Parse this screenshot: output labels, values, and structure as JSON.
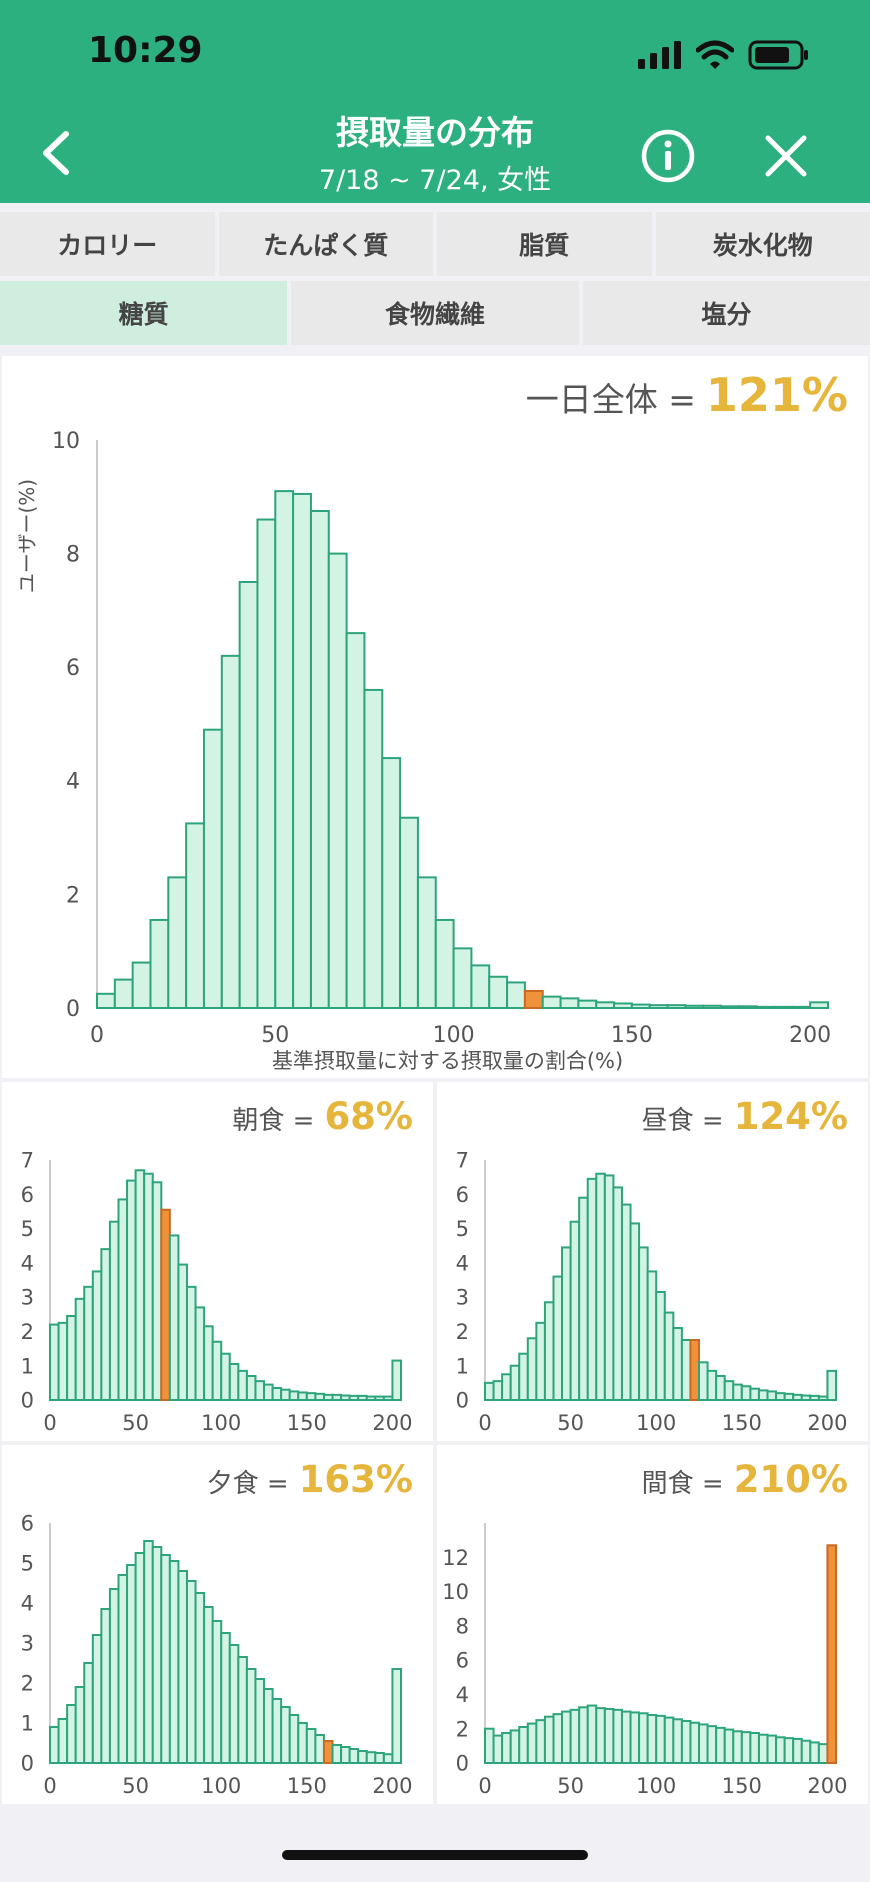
{
  "status_bar": {
    "time": "10:29"
  },
  "header": {
    "title": "摂取量の分布",
    "subtitle": "7/18 ~ 7/24, 女性"
  },
  "tabs": {
    "row1": [
      "カロリー",
      "たんぱく質",
      "脂質",
      "炭水化物"
    ],
    "row2": [
      "糖質",
      "食物繊維",
      "塩分"
    ],
    "active": "糖質"
  },
  "colors": {
    "header": "#2db07f",
    "bar_fill": "#d3f3e5",
    "bar_stroke": "#2ea47c",
    "highlight": "#f0923a",
    "value": "#e6b53c",
    "active_tab": "#cfeee0"
  },
  "chart_data": [
    {
      "type": "bar",
      "stat_label": "一日全体 =",
      "stat_value": "121%",
      "ylabel": "ユーザー(%)",
      "xlabel": "基準摂取量に対する摂取量の割合(%)",
      "xlim": [
        0,
        205
      ],
      "ylim": [
        0,
        10
      ],
      "xticks": [
        0,
        50,
        100,
        150,
        200
      ],
      "yticks": [
        0,
        2,
        4,
        6,
        8,
        10
      ],
      "bin_width": 5,
      "highlight_bin": 24,
      "values": [
        0.25,
        0.5,
        0.8,
        1.55,
        2.3,
        3.25,
        4.9,
        6.2,
        7.5,
        8.6,
        9.1,
        9.05,
        8.75,
        8.0,
        6.6,
        5.6,
        4.4,
        3.35,
        2.3,
        1.55,
        1.05,
        0.75,
        0.55,
        0.45,
        0.3,
        0.2,
        0.17,
        0.13,
        0.1,
        0.08,
        0.06,
        0.05,
        0.05,
        0.04,
        0.04,
        0.03,
        0.03,
        0.02,
        0.02,
        0.02,
        0.1
      ]
    },
    {
      "type": "bar",
      "stat_label": "朝食 =",
      "stat_value": "68%",
      "xlim": [
        0,
        205
      ],
      "ylim": [
        0,
        7
      ],
      "xticks": [
        0,
        50,
        100,
        150,
        200
      ],
      "yticks": [
        0,
        1,
        2,
        3,
        4,
        5,
        6,
        7
      ],
      "bin_width": 5,
      "highlight_bin": 13,
      "values": [
        2.2,
        2.25,
        2.45,
        2.95,
        3.3,
        3.75,
        4.4,
        5.2,
        5.85,
        6.4,
        6.7,
        6.6,
        6.35,
        5.55,
        4.8,
        3.95,
        3.3,
        2.7,
        2.15,
        1.7,
        1.35,
        1.05,
        0.85,
        0.7,
        0.55,
        0.45,
        0.35,
        0.3,
        0.25,
        0.22,
        0.2,
        0.18,
        0.15,
        0.15,
        0.13,
        0.12,
        0.12,
        0.1,
        0.1,
        0.1,
        1.15
      ]
    },
    {
      "type": "bar",
      "stat_label": "昼食 =",
      "stat_value": "124%",
      "xlim": [
        0,
        205
      ],
      "ylim": [
        0,
        7
      ],
      "xticks": [
        0,
        50,
        100,
        150,
        200
      ],
      "yticks": [
        0,
        1,
        2,
        3,
        4,
        5,
        6,
        7
      ],
      "bin_width": 5,
      "highlight_bin": 24,
      "values": [
        0.5,
        0.55,
        0.75,
        1.0,
        1.35,
        1.8,
        2.25,
        2.85,
        3.6,
        4.45,
        5.2,
        5.9,
        6.45,
        6.6,
        6.55,
        6.2,
        5.7,
        5.15,
        4.45,
        3.75,
        3.15,
        2.55,
        2.1,
        1.75,
        1.75,
        1.1,
        0.85,
        0.7,
        0.55,
        0.45,
        0.4,
        0.33,
        0.28,
        0.25,
        0.2,
        0.18,
        0.15,
        0.13,
        0.12,
        0.1,
        0.85
      ]
    },
    {
      "type": "bar",
      "stat_label": "夕食 =",
      "stat_value": "163%",
      "xlim": [
        0,
        205
      ],
      "ylim": [
        0,
        6
      ],
      "xticks": [
        0,
        50,
        100,
        150,
        200
      ],
      "yticks": [
        0,
        1,
        2,
        3,
        4,
        5,
        6
      ],
      "bin_width": 5,
      "highlight_bin": 32,
      "values": [
        0.9,
        1.1,
        1.45,
        1.9,
        2.5,
        3.2,
        3.85,
        4.35,
        4.7,
        4.95,
        5.25,
        5.55,
        5.4,
        5.2,
        5.05,
        4.8,
        4.55,
        4.25,
        3.9,
        3.55,
        3.25,
        2.95,
        2.65,
        2.35,
        2.1,
        1.85,
        1.6,
        1.4,
        1.2,
        1.0,
        0.85,
        0.7,
        0.55,
        0.45,
        0.4,
        0.35,
        0.3,
        0.27,
        0.25,
        0.22,
        2.35
      ]
    },
    {
      "type": "bar",
      "stat_label": "間食 =",
      "stat_value": "210%",
      "xlim": [
        0,
        205
      ],
      "ylim": [
        0,
        14
      ],
      "xticks": [
        0,
        50,
        100,
        150,
        200
      ],
      "yticks": [
        0,
        2,
        4,
        6,
        8,
        10,
        12
      ],
      "bin_width": 5,
      "highlight_bin": 40,
      "values": [
        2.0,
        1.6,
        1.75,
        1.9,
        2.1,
        2.3,
        2.5,
        2.7,
        2.85,
        3.0,
        3.1,
        3.25,
        3.35,
        3.2,
        3.15,
        3.1,
        3.0,
        2.95,
        2.9,
        2.8,
        2.75,
        2.65,
        2.55,
        2.45,
        2.35,
        2.25,
        2.15,
        2.05,
        1.95,
        1.85,
        1.8,
        1.75,
        1.65,
        1.6,
        1.5,
        1.45,
        1.4,
        1.3,
        1.2,
        1.1,
        12.7
      ]
    }
  ]
}
